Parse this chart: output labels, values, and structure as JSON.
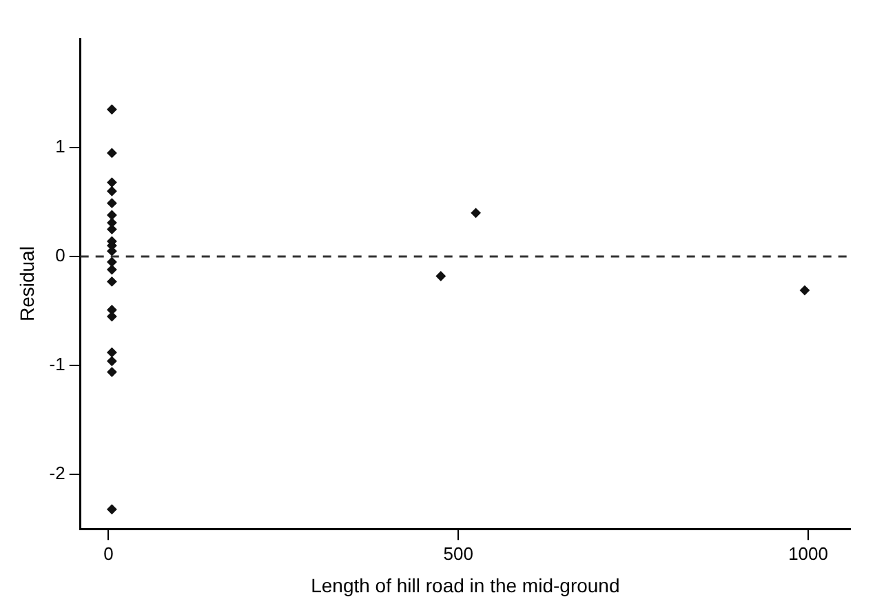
{
  "chart_data": {
    "type": "scatter",
    "xlabel": "Length of hill road in the mid-ground",
    "ylabel": "Residual",
    "series": [
      {
        "color": "#111111",
        "x": [
          5,
          5,
          5,
          5,
          5,
          5,
          5,
          5,
          5,
          5,
          5,
          5,
          5,
          5,
          5,
          5,
          5,
          5,
          5,
          5,
          475,
          525,
          995
        ],
        "values": [
          1.35,
          0.95,
          0.68,
          0.6,
          0.49,
          0.38,
          0.31,
          0.25,
          0.14,
          0.1,
          0.05,
          -0.05,
          -0.12,
          -0.23,
          -0.49,
          -0.55,
          -0.88,
          -0.96,
          -1.06,
          -2.32,
          -0.18,
          0.4,
          -0.31
        ]
      }
    ],
    "xlim": [
      -40,
      1060
    ],
    "xticks": [
      0,
      500,
      1000
    ],
    "ylim": [
      -2.5,
      2
    ],
    "yticks": [
      -2,
      -1,
      0,
      1
    ],
    "ref_lines": [
      {
        "axis": "y",
        "value": 0,
        "color": "#333333",
        "line_style": "dashed"
      }
    ],
    "marker": "diamond",
    "grid": false,
    "legend": false
  }
}
